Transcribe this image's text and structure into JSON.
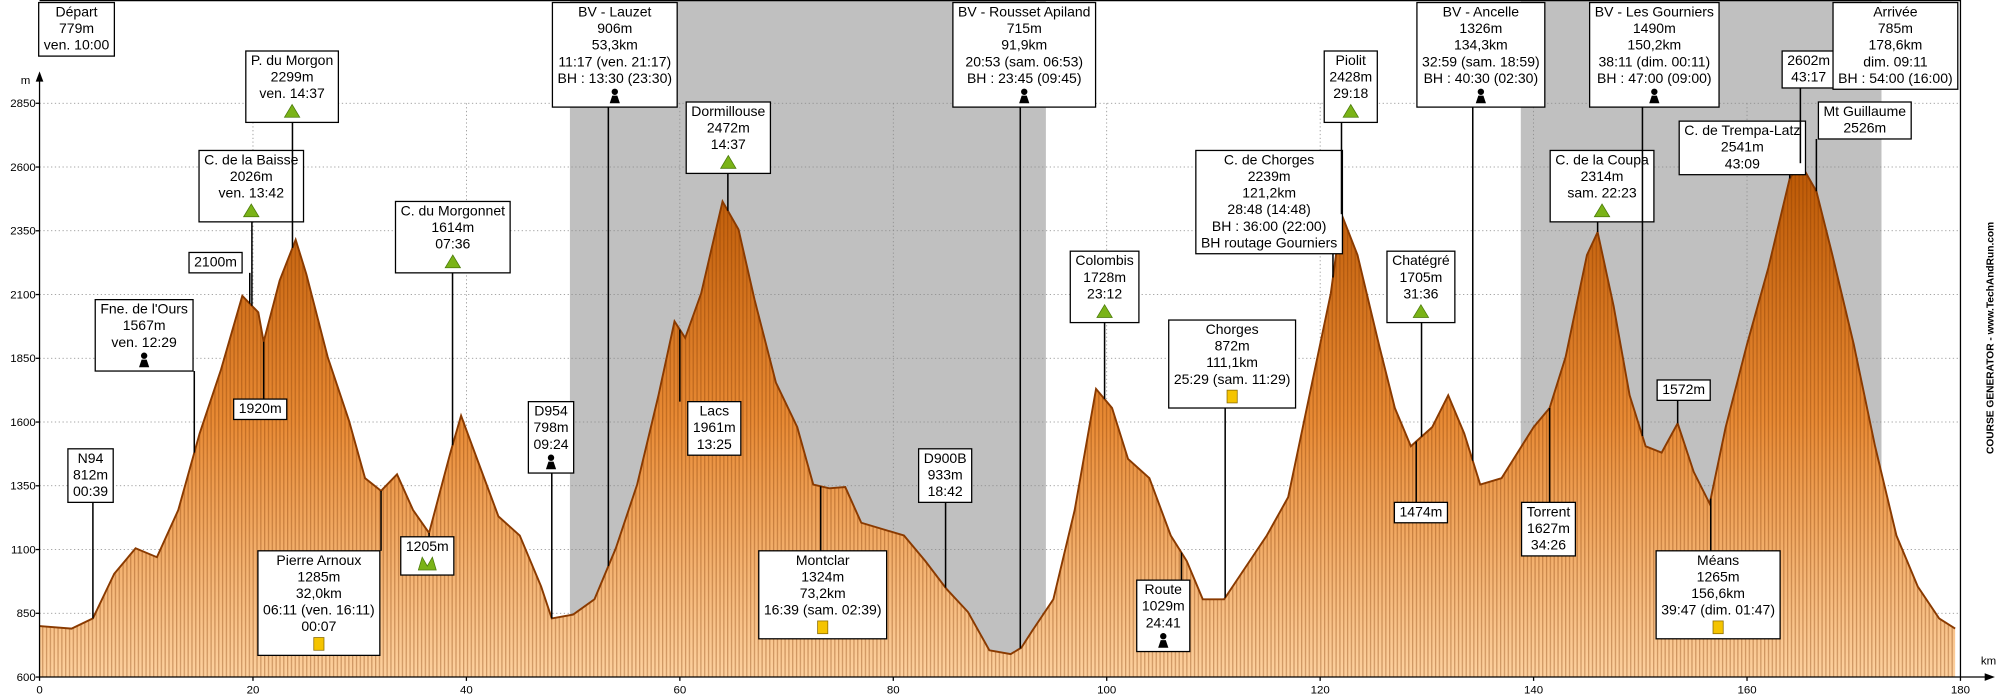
{
  "chart_data": {
    "type": "area",
    "x_label": "km",
    "y_label": "m",
    "credit": "COURSE GENERATOR - www.TechAndRun.com",
    "color": "#e07a20",
    "line_color": "#8a3a00",
    "shade_color": "#c0c0c0",
    "grid": true,
    "xlim": [
      0,
      180
    ],
    "ylim": [
      600,
      2850
    ],
    "xticks": [
      0,
      20,
      40,
      60,
      80,
      100,
      120,
      140,
      160,
      180
    ],
    "yticks": [
      600,
      850,
      1100,
      1350,
      1600,
      1850,
      2100,
      2350,
      2600,
      2850
    ],
    "x": [
      0,
      3,
      5,
      7,
      9,
      11,
      13,
      15,
      17,
      19,
      20.5,
      21,
      22.5,
      24,
      25,
      27,
      29,
      30.5,
      32,
      33.5,
      35,
      36.5,
      38.5,
      39.5,
      41,
      43,
      45,
      47,
      48,
      50,
      52,
      54,
      56,
      58,
      59.5,
      60.5,
      62,
      64,
      65.5,
      67,
      69,
      71,
      72.5,
      74,
      75.5,
      77,
      79,
      81,
      83,
      85,
      87,
      89,
      91,
      92,
      93,
      95,
      97,
      99,
      100.5,
      102,
      104,
      106,
      107.5,
      109,
      111,
      113,
      115,
      117,
      119,
      121,
      122,
      123.5,
      125.5,
      127,
      128.5,
      130.5,
      132,
      133.5,
      135,
      137,
      138.5,
      140,
      141.5,
      143,
      145,
      146,
      147.5,
      149,
      150.5,
      152,
      153.5,
      155,
      156.5,
      158,
      160,
      162,
      164,
      165,
      166.5,
      168,
      170,
      172,
      174,
      176,
      178,
      179.5
    ],
    "values": [
      800,
      790,
      830,
      1005,
      1105,
      1070,
      1255,
      1555,
      1805,
      2095,
      2030,
      1915,
      2155,
      2315,
      2180,
      1855,
      1605,
      1380,
      1330,
      1395,
      1255,
      1165,
      1480,
      1625,
      1455,
      1230,
      1155,
      955,
      830,
      845,
      905,
      1105,
      1355,
      1705,
      1995,
      1930,
      2105,
      2465,
      2355,
      2080,
      1755,
      1580,
      1355,
      1340,
      1345,
      1205,
      1180,
      1155,
      1055,
      945,
      855,
      705,
      690,
      715,
      780,
      905,
      1255,
      1730,
      1655,
      1455,
      1380,
      1155,
      1055,
      905,
      905,
      1030,
      1155,
      1305,
      1705,
      2105,
      2415,
      2255,
      1905,
      1655,
      1505,
      1580,
      1705,
      1555,
      1355,
      1380,
      1480,
      1580,
      1655,
      1855,
      2255,
      2345,
      2055,
      1705,
      1505,
      1480,
      1595,
      1405,
      1280,
      1580,
      1905,
      2205,
      2555,
      2615,
      2505,
      2255,
      1905,
      1505,
      1155,
      955,
      830,
      790
    ],
    "night_ranges": [
      [
        49.7,
        94.3
      ],
      [
        138.8,
        172.6
      ]
    ],
    "waypoints": [
      {
        "km": 0,
        "lines": [
          "Départ",
          "779m",
          "ven. 10:00"
        ]
      },
      {
        "km": 5,
        "lines": [
          "N94",
          "812m",
          "00:39"
        ]
      },
      {
        "km": 14.5,
        "lines": [
          "Fne. de l'Ours",
          "1567m",
          "ven. 12:29"
        ]
      },
      {
        "km": 19.7,
        "lines": [
          "2100m"
        ]
      },
      {
        "km": 19.9,
        "lines": [
          "C. de la Baisse",
          "2026m",
          "ven. 13:42"
        ]
      },
      {
        "km": 21,
        "lines": [
          "1920m"
        ]
      },
      {
        "km": 23.7,
        "lines": [
          "P. du Morgon",
          "2299m",
          "ven. 14:37"
        ]
      },
      {
        "km": 32,
        "lines": [
          "Pierre Arnoux",
          "1285m",
          "32,0km",
          "06:11 (ven. 16:11)",
          "00:07"
        ]
      },
      {
        "km": 36.5,
        "lines": [
          "1205m"
        ]
      },
      {
        "km": 38.7,
        "lines": [
          "C. du Morgonnet",
          "1614m",
          "07:36"
        ]
      },
      {
        "km": 48,
        "lines": [
          "D954",
          "798m",
          "09:24"
        ]
      },
      {
        "km": 53.3,
        "lines": [
          "BV - Lauzet",
          "906m",
          "53,3km",
          "11:17 (ven. 21:17)",
          "BH : 13:30 (23:30)"
        ]
      },
      {
        "km": 64.5,
        "lines": [
          "Dormillouse",
          "2472m",
          "14:37"
        ]
      },
      {
        "km": 60,
        "lines": [
          "Lacs",
          "1961m",
          "13:25"
        ]
      },
      {
        "km": 73.2,
        "lines": [
          "Montclar",
          "1324m",
          "73,2km",
          "16:39 (sam. 02:39)"
        ]
      },
      {
        "km": 84.9,
        "lines": [
          "D900B",
          "933m",
          "18:42"
        ]
      },
      {
        "km": 91.9,
        "lines": [
          "BV - Rousset Apiland",
          "715m",
          "91,9km",
          "20:53 (sam. 06:53)",
          "BH : 23:45 (09:45)"
        ]
      },
      {
        "km": 99.8,
        "lines": [
          "Colombis",
          "1728m",
          "23:12"
        ]
      },
      {
        "km": 107,
        "lines": [
          "Route",
          "1029m",
          "24:41"
        ]
      },
      {
        "km": 111.1,
        "lines": [
          "Chorges",
          "872m",
          "111,1km",
          "25:29 (sam. 11:29)"
        ]
      },
      {
        "km": 121.2,
        "lines": [
          "C. de Chorges",
          "2239m",
          "121,2km",
          "28:48 (14:48)",
          "BH : 36:00 (22:00)",
          "BH routage Gourniers"
        ]
      },
      {
        "km": 122,
        "lines": [
          "Piolit",
          "2428m",
          "29:18"
        ]
      },
      {
        "km": 129.5,
        "lines": [
          "Chatégré",
          "1705m",
          "31:36"
        ]
      },
      {
        "km": 129,
        "lines": [
          "1474m"
        ]
      },
      {
        "km": 134.3,
        "lines": [
          "BV - Ancelle",
          "1326m",
          "134,3km",
          "32:59 (sam. 18:59)",
          "BH : 40:30 (02:30)"
        ]
      },
      {
        "km": 141.5,
        "lines": [
          "Torrent",
          "1627m",
          "34:26"
        ]
      },
      {
        "km": 146,
        "lines": [
          "C. de la Coupa",
          "2314m",
          "sam. 22:23"
        ]
      },
      {
        "km": 150.2,
        "lines": [
          "BV - Les Gourniers",
          "1490m",
          "150,2km",
          "38:11 (dim. 00:11)",
          "BH : 47:00 (09:00)"
        ]
      },
      {
        "km": 153.5,
        "lines": [
          "1572m"
        ]
      },
      {
        "km": 156.6,
        "lines": [
          "Méans",
          "1265m",
          "156,6km",
          "39:47 (dim. 01:47)"
        ]
      },
      {
        "km": 164,
        "lines": [
          "C. de Trempa-Latz",
          "2541m",
          "43:09"
        ]
      },
      {
        "km": 165,
        "lines": [
          "2602m",
          "43:17"
        ]
      },
      {
        "km": 166.5,
        "lines": [
          "Mt Guillaume",
          "2526m"
        ]
      },
      {
        "km": 178.6,
        "lines": [
          "Arrivée",
          "785m",
          "178,6km",
          "dim. 09:11",
          "BH : 54:00 (16:00)"
        ]
      }
    ]
  }
}
